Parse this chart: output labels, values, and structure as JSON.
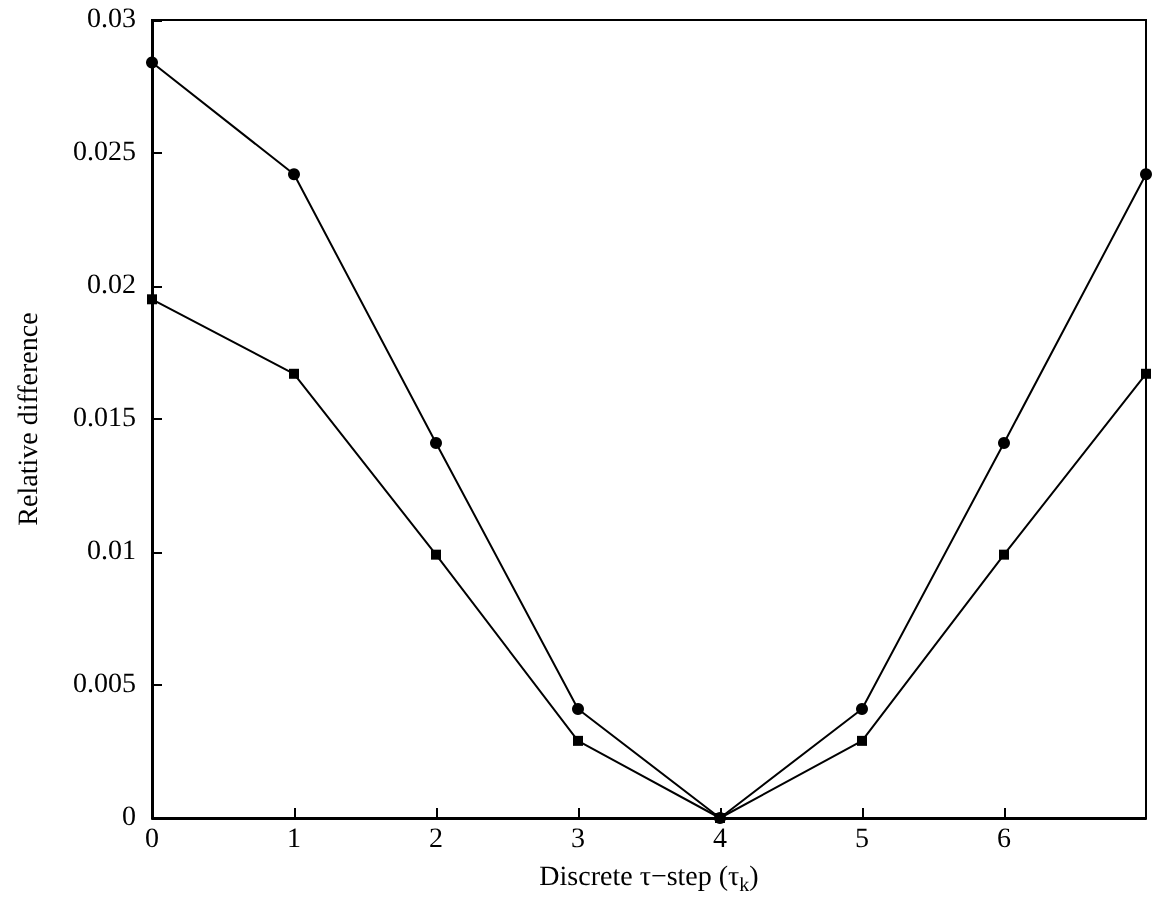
{
  "chart_data": {
    "type": "line",
    "xlabel": "Discrete τ−step (τ$_{k}$)",
    "ylabel": "Relative difference",
    "x": [
      0,
      1,
      2,
      3,
      4,
      5,
      6,
      7
    ],
    "series": [
      {
        "color": "#000000",
        "marker": "circle",
        "values": [
          0.0284,
          0.0242,
          0.0141,
          0.0041,
          0,
          0.0041,
          0.0141,
          0.0242
        ]
      },
      {
        "color": "#000000",
        "marker": "square",
        "values": [
          0.0195,
          0.0167,
          0.0099,
          0.0029,
          0,
          0.0029,
          0.0099,
          0.0167
        ]
      }
    ],
    "xlim": [
      0,
      7
    ],
    "xticks": [
      0,
      1,
      2,
      3,
      4,
      5,
      6
    ],
    "ylim": [
      0,
      0.03
    ],
    "yticks": [
      0,
      0.005,
      0.01,
      0.015,
      0.02,
      0.025,
      0.03
    ],
    "grid": false,
    "line_style": "solid"
  }
}
